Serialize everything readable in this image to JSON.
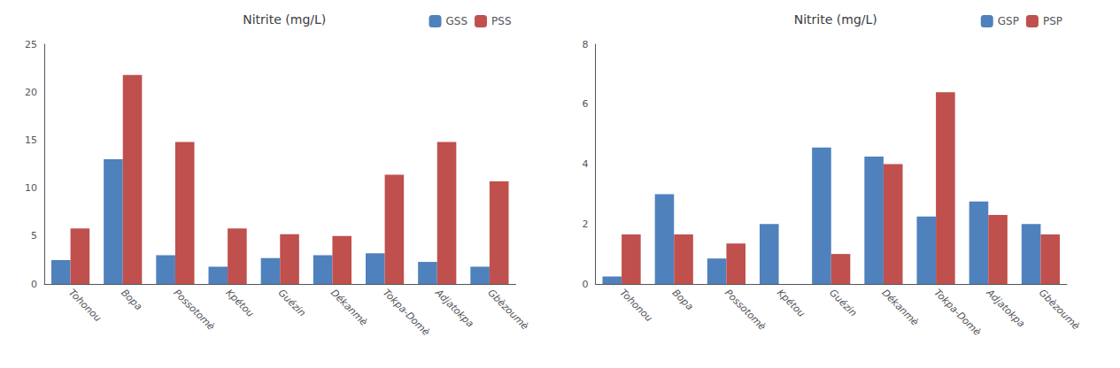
{
  "chart_data": [
    {
      "type": "bar",
      "title": "Nitrite (mg/L)",
      "categories": [
        "Tohonou",
        "Bopa",
        "Possotomè",
        "Kpétou",
        "Guézin",
        "Dékanmè",
        "Tokpa-Domè",
        "Adjatokpa",
        "Gbèzoumè"
      ],
      "series": [
        {
          "name": "GSS",
          "color": "#4F81BD",
          "values": [
            2.5,
            13.0,
            3.0,
            1.8,
            2.7,
            3.0,
            3.2,
            2.3,
            1.8
          ]
        },
        {
          "name": "PSS",
          "color": "#C0504D",
          "values": [
            5.8,
            21.8,
            14.8,
            5.8,
            5.2,
            5.0,
            11.4,
            14.8,
            10.7
          ]
        }
      ],
      "ylim": [
        0,
        25
      ],
      "yticks": [
        0,
        5,
        10,
        15,
        20,
        25
      ],
      "grid": false,
      "legend": "upper right"
    },
    {
      "type": "bar",
      "title": "Nitrite (mg/L)",
      "categories": [
        "Tohonou",
        "Bopa",
        "Possotomè",
        "Kpétou",
        "Guézin",
        "Dékanmè",
        "Tokpa-Domè",
        "Adjatokpa",
        "Gbèzoumè"
      ],
      "series": [
        {
          "name": "GSP",
          "color": "#4F81BD",
          "values": [
            0.25,
            3.0,
            0.85,
            2.0,
            4.55,
            4.25,
            2.25,
            2.75,
            2.0
          ]
        },
        {
          "name": "PSP",
          "color": "#C0504D",
          "values": [
            1.65,
            1.65,
            1.35,
            0.0,
            1.0,
            4.0,
            6.4,
            2.3,
            1.65
          ]
        }
      ],
      "ylim": [
        0,
        8
      ],
      "yticks": [
        0,
        2,
        4,
        6,
        8
      ],
      "grid": false,
      "legend": "upper right"
    }
  ]
}
